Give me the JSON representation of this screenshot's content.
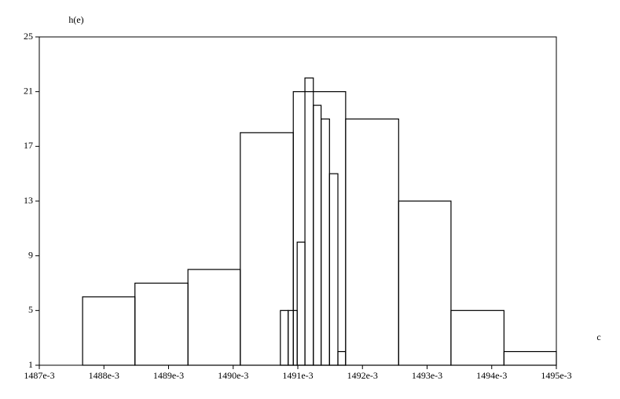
{
  "chart_data": {
    "type": "histogram",
    "y_label": "h(e)",
    "x_label": "c",
    "xlim": [
      1.487,
      1.495
    ],
    "xticks": [
      {
        "value": 1.487,
        "label": "1487e-3"
      },
      {
        "value": 1.488,
        "label": "1488e-3"
      },
      {
        "value": 1.489,
        "label": "1489e-3"
      },
      {
        "value": 1.49,
        "label": "1490e-3"
      },
      {
        "value": 1.491,
        "label": "1491e-3"
      },
      {
        "value": 1.492,
        "label": "1492e-3"
      },
      {
        "value": 1.493,
        "label": "1493e-3"
      },
      {
        "value": 1.494,
        "label": "1494e-3"
      },
      {
        "value": 1.495,
        "label": "1495e-3"
      }
    ],
    "ylim": [
      1,
      25
    ],
    "yticks": [
      1,
      5,
      9,
      13,
      17,
      21,
      25
    ],
    "series": [
      {
        "color": "#000000",
        "bins": [
          1.48767,
          1.48848,
          1.4893,
          1.49011,
          1.49093,
          1.49174,
          1.49256,
          1.49337,
          1.49419,
          1.495
        ],
        "values": [
          6,
          7,
          8,
          18,
          21,
          19,
          13,
          5,
          2
        ]
      },
      {
        "color": "#000000",
        "bins": [
          1.49073,
          1.49085,
          1.49099,
          1.49111,
          1.49124,
          1.49136,
          1.49149,
          1.49162,
          1.49174
        ],
        "values": [
          5,
          5,
          10,
          22,
          20,
          19,
          15,
          2
        ]
      }
    ]
  }
}
